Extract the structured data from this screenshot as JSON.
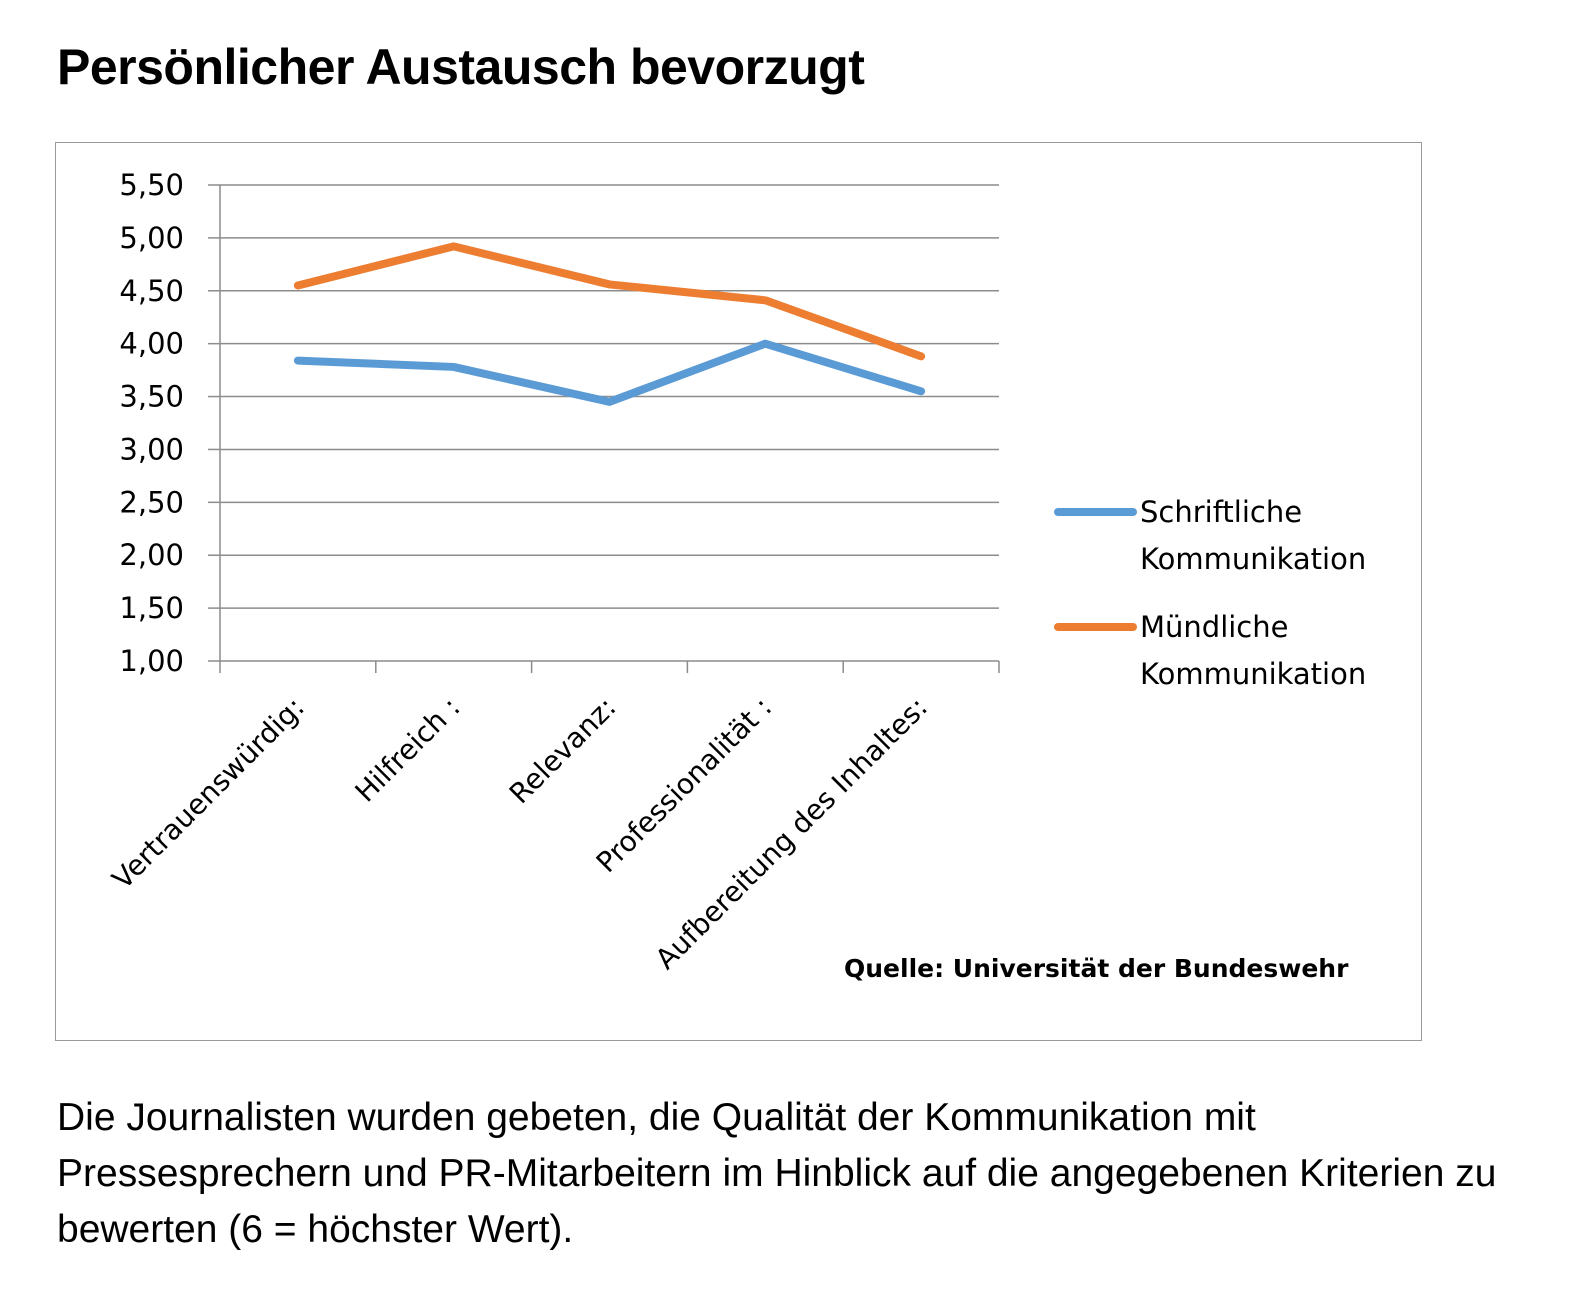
{
  "heading": "Persönlicher Austausch bevorzugt",
  "caption": "Die Journalisten wurden gebeten, die Qualität der Kommunikation mit Pressesprechern und PR-Mitarbeitern im Hinblick auf die angegebenen Kriterien zu bewerten (6 = höchster Wert).",
  "source": "Quelle:  Universität der Bundeswehr",
  "chart_data": {
    "type": "line",
    "categories": [
      "Vertrauenswürdig:",
      "Hilfreich :",
      "Relevanz:",
      "Professionalität :",
      "Aufbereitung des Inhaltes:"
    ],
    "series": [
      {
        "name": "Schriftliche Kommunikation",
        "legend_lines": [
          "Schriftliche",
          "Kommunikation"
        ],
        "color": "#5b9bd5",
        "values": [
          3.84,
          3.78,
          3.45,
          4.0,
          3.55
        ]
      },
      {
        "name": "Mündliche Kommunikation",
        "legend_lines": [
          "Mündliche",
          "Kommunikation"
        ],
        "color": "#ed7d31",
        "values": [
          4.55,
          4.92,
          4.56,
          4.41,
          3.88
        ]
      }
    ],
    "yticks": [
      "5,50",
      "5,00",
      "4,50",
      "4,00",
      "3,50",
      "3,00",
      "2,50",
      "2,00",
      "1,50",
      "1,00"
    ],
    "ylim": [
      1.0,
      5.5
    ],
    "grid": true,
    "legend_position": "right",
    "title": "",
    "xlabel": "",
    "ylabel": ""
  }
}
